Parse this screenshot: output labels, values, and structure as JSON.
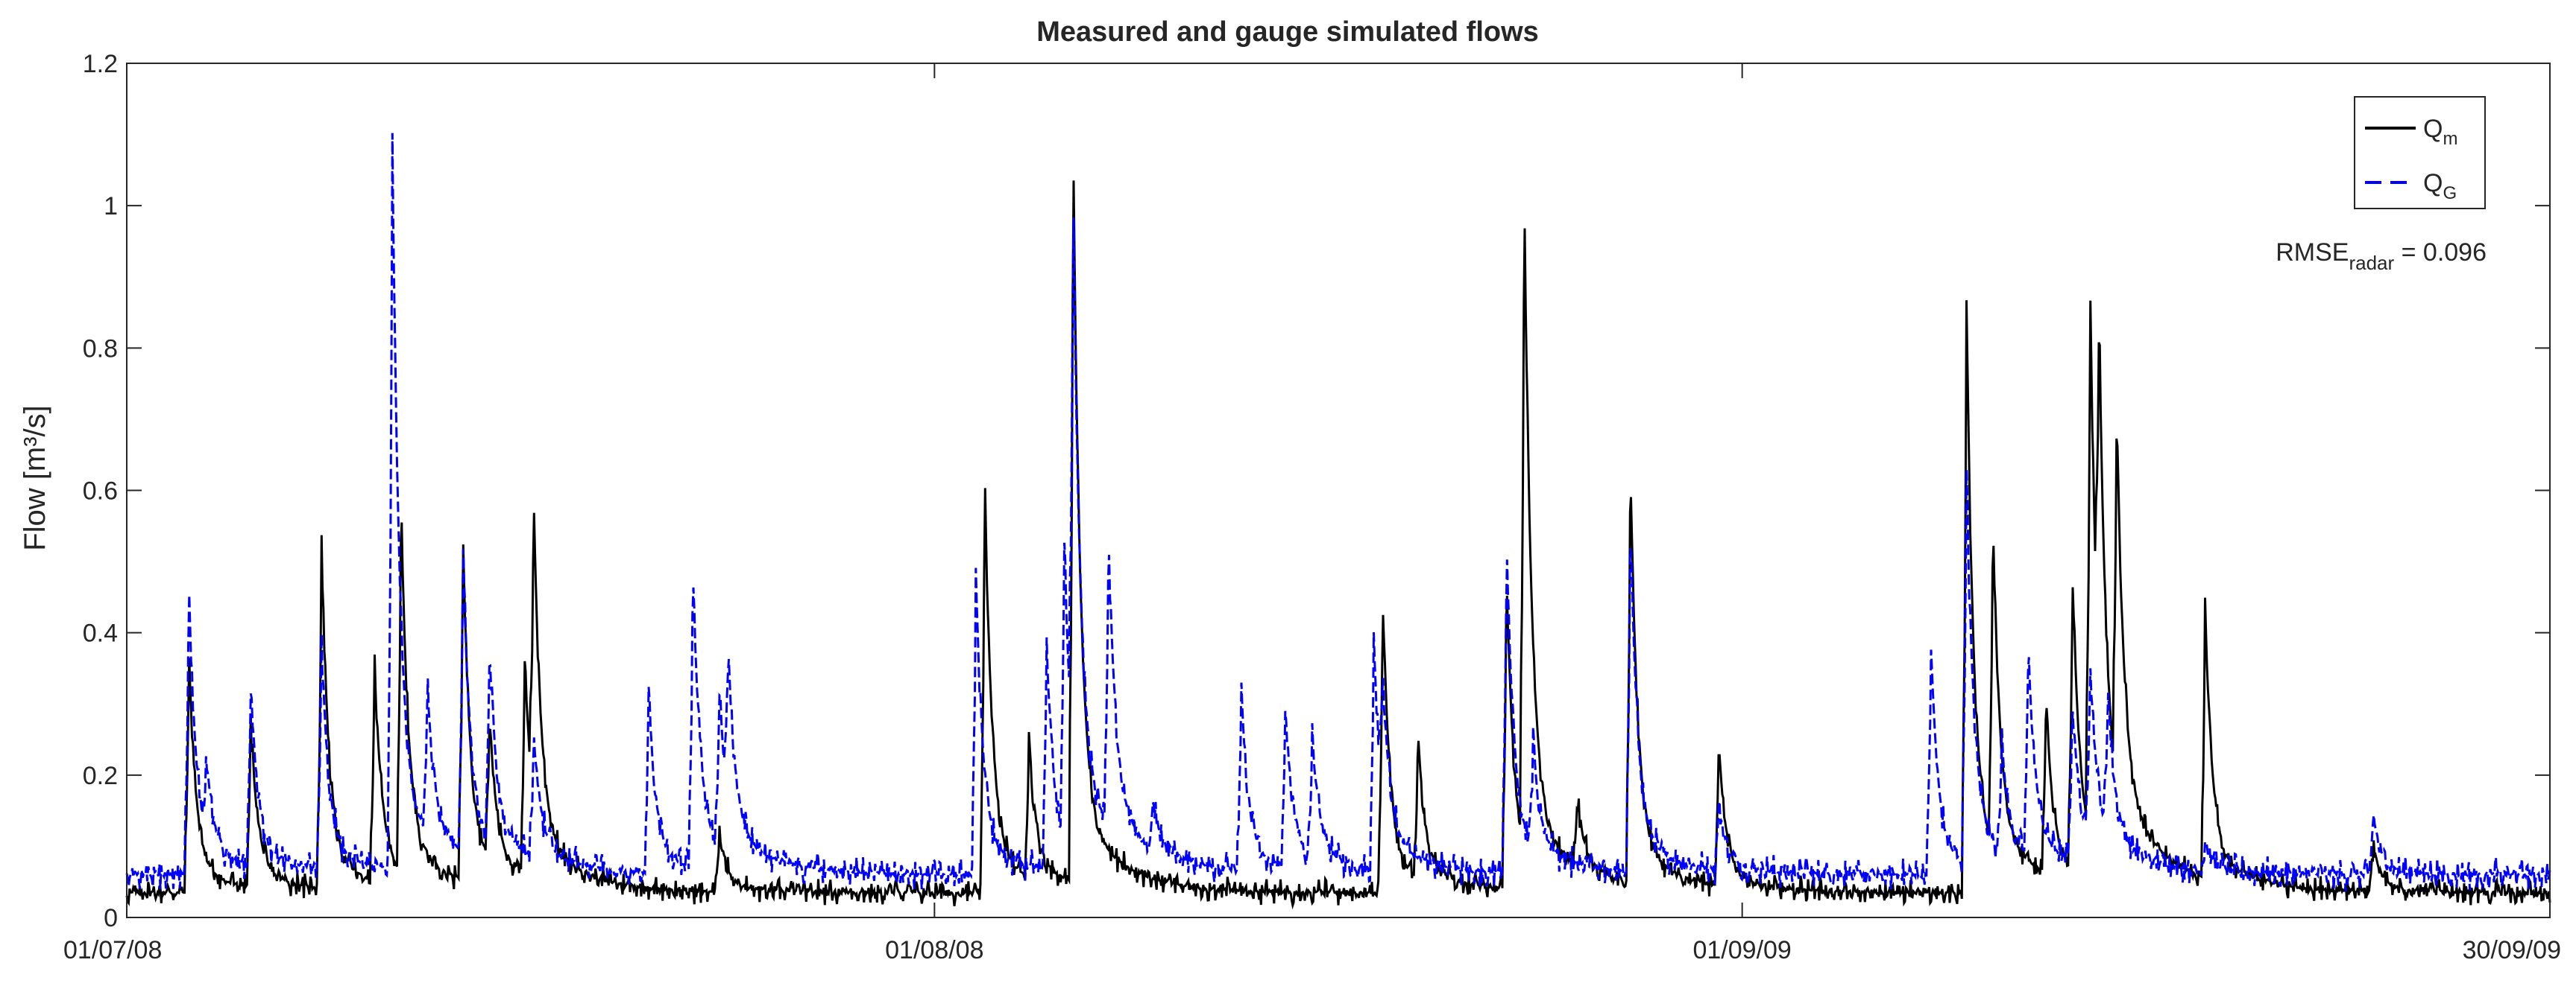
{
  "chart_data": {
    "type": "line",
    "title": "Measured and gauge simulated flows",
    "ylabel": "Flow [m³/s]",
    "xlabel": "",
    "ylim": [
      0,
      1.2
    ],
    "yticks": [
      "0",
      "0.2",
      "0.4",
      "0.6",
      "0.8",
      "1",
      "1.2"
    ],
    "xticks": [
      "01/07/08",
      "01/08/08",
      "01/09/09",
      "30/09/09"
    ],
    "grid": false,
    "legend_position": "top-right",
    "annotation": {
      "text": "RMSE",
      "subscript": "radar",
      "suffix": " = 0.096"
    },
    "series": [
      {
        "name": "Q",
        "name_sub": "m",
        "color": "#000000",
        "style": "solid",
        "baseline": 0.035,
        "noise": 0.02,
        "peaks": [
          [
            0.035,
            0.35
          ],
          [
            0.07,
            0.25
          ],
          [
            0.11,
            0.49
          ],
          [
            0.14,
            0.32
          ],
          [
            0.155,
            0.51
          ],
          [
            0.19,
            0.48
          ],
          [
            0.205,
            0.22
          ],
          [
            0.225,
            0.32
          ],
          [
            0.23,
            0.43
          ],
          [
            0.335,
            0.12
          ],
          [
            0.485,
            0.58
          ],
          [
            0.51,
            0.22
          ],
          [
            0.535,
            0.99
          ],
          [
            0.71,
            0.42
          ],
          [
            0.73,
            0.22
          ],
          [
            0.78,
            0.45
          ],
          [
            0.79,
            0.89
          ],
          [
            0.82,
            0.12
          ],
          [
            0.85,
            0.58
          ],
          [
            0.9,
            0.22
          ],
          [
            1.04,
            0.81
          ],
          [
            1.055,
            0.46
          ],
          [
            1.085,
            0.26
          ],
          [
            1.1,
            0.42
          ],
          [
            1.11,
            0.75
          ],
          [
            1.115,
            0.5
          ],
          [
            1.125,
            0.52
          ],
          [
            1.175,
            0.38
          ],
          [
            1.27,
            0.1
          ]
        ]
      },
      {
        "name": "Q",
        "name_sub": "G",
        "color": "#0000ff",
        "style": "dashed",
        "baseline": 0.06,
        "noise": 0.025,
        "peaks": [
          [
            0.035,
            0.44
          ],
          [
            0.045,
            0.16
          ],
          [
            0.07,
            0.3
          ],
          [
            0.11,
            0.36
          ],
          [
            0.15,
            1.02
          ],
          [
            0.17,
            0.25
          ],
          [
            0.19,
            0.46
          ],
          [
            0.205,
            0.31
          ],
          [
            0.23,
            0.22
          ],
          [
            0.295,
            0.3
          ],
          [
            0.32,
            0.45
          ],
          [
            0.335,
            0.27
          ],
          [
            0.34,
            0.26
          ],
          [
            0.48,
            0.45
          ],
          [
            0.52,
            0.35
          ],
          [
            0.53,
            0.45
          ],
          [
            0.535,
            0.8
          ],
          [
            0.555,
            0.44
          ],
          [
            0.58,
            0.12
          ],
          [
            0.63,
            0.3
          ],
          [
            0.655,
            0.27
          ],
          [
            0.67,
            0.22
          ],
          [
            0.705,
            0.36
          ],
          [
            0.71,
            0.22
          ],
          [
            0.78,
            0.5
          ],
          [
            0.795,
            0.2
          ],
          [
            0.85,
            0.52
          ],
          [
            0.9,
            0.15
          ],
          [
            1.02,
            0.36
          ],
          [
            1.04,
            0.58
          ],
          [
            1.06,
            0.2
          ],
          [
            1.075,
            0.33
          ],
          [
            1.1,
            0.27
          ],
          [
            1.11,
            0.3
          ],
          [
            1.12,
            0.25
          ],
          [
            1.175,
            0.1
          ],
          [
            1.27,
            0.14
          ],
          [
            1.375,
            0.19
          ]
        ]
      }
    ]
  }
}
